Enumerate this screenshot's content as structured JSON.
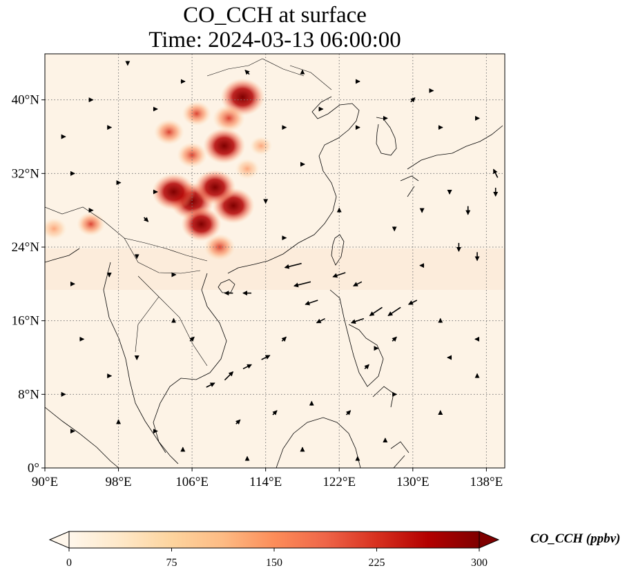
{
  "title": {
    "line1": "CO_CCH at surface",
    "line2": "Time: 2024-03-13 06:00:00"
  },
  "map": {
    "lon_range": [
      90,
      140
    ],
    "lat_range": [
      0,
      45
    ],
    "lon_ticks": [
      "90°E",
      "98°E",
      "106°E",
      "114°E",
      "122°E",
      "130°E",
      "138°E"
    ],
    "lon_tick_values": [
      90,
      98,
      106,
      114,
      122,
      130,
      138
    ],
    "lat_ticks": [
      "0°",
      "8°N",
      "16°N",
      "24°N",
      "32°N",
      "40°N"
    ],
    "lat_tick_values": [
      0,
      8,
      16,
      24,
      32,
      40
    ],
    "gridlines": true,
    "field": "CO_CCH",
    "hotspots": [
      {
        "lon": 106.0,
        "lat": 29.0,
        "value": 300
      },
      {
        "lon": 104.0,
        "lat": 30.0,
        "value": 290
      },
      {
        "lon": 110.5,
        "lat": 28.5,
        "value": 280
      },
      {
        "lon": 108.5,
        "lat": 30.5,
        "value": 270
      },
      {
        "lon": 107.0,
        "lat": 26.5,
        "value": 260
      },
      {
        "lon": 109.5,
        "lat": 35.0,
        "value": 280
      },
      {
        "lon": 111.5,
        "lat": 40.3,
        "value": 300
      },
      {
        "lon": 110.0,
        "lat": 38.0,
        "value": 180
      },
      {
        "lon": 106.5,
        "lat": 38.5,
        "value": 150
      },
      {
        "lon": 103.5,
        "lat": 36.5,
        "value": 160
      },
      {
        "lon": 106.0,
        "lat": 34.0,
        "value": 160
      },
      {
        "lon": 95.0,
        "lat": 26.5,
        "value": 140
      },
      {
        "lon": 91.0,
        "lat": 26.0,
        "value": 120
      },
      {
        "lon": 109.0,
        "lat": 24.0,
        "value": 170
      },
      {
        "lon": 113.5,
        "lat": 35.0,
        "value": 90
      },
      {
        "lon": 112.0,
        "lat": 32.5,
        "value": 110
      }
    ],
    "wind_vectors": [
      {
        "lon": 117,
        "lat": 22,
        "u": -4,
        "v": -1
      },
      {
        "lon": 118,
        "lat": 20,
        "u": -4,
        "v": -1
      },
      {
        "lon": 119,
        "lat": 18,
        "u": -3,
        "v": -1
      },
      {
        "lon": 122,
        "lat": 21,
        "u": -3,
        "v": -1
      },
      {
        "lon": 124,
        "lat": 20,
        "u": -2,
        "v": -1
      },
      {
        "lon": 126,
        "lat": 17,
        "u": -3,
        "v": -2
      },
      {
        "lon": 128,
        "lat": 17,
        "u": -3,
        "v": -2
      },
      {
        "lon": 124,
        "lat": 16,
        "u": -3,
        "v": -1
      },
      {
        "lon": 130,
        "lat": 18,
        "u": -2,
        "v": -1
      },
      {
        "lon": 135,
        "lat": 24,
        "u": 0,
        "v": -2
      },
      {
        "lon": 137,
        "lat": 23,
        "u": 0,
        "v": -2
      },
      {
        "lon": 136,
        "lat": 28,
        "u": 0,
        "v": -2
      },
      {
        "lon": 139,
        "lat": 30,
        "u": 0,
        "v": -2
      },
      {
        "lon": 139,
        "lat": 32,
        "u": -1,
        "v": 2
      },
      {
        "lon": 133,
        "lat": 16,
        "u": 0,
        "v": 1
      },
      {
        "lon": 110,
        "lat": 10,
        "u": 2,
        "v": 2
      },
      {
        "lon": 108,
        "lat": 9,
        "u": 2,
        "v": 1
      },
      {
        "lon": 112,
        "lat": 11,
        "u": 2,
        "v": 1
      },
      {
        "lon": 114,
        "lat": 12,
        "u": 2,
        "v": 1
      },
      {
        "lon": 116,
        "lat": 14,
        "u": 1,
        "v": 1
      },
      {
        "lon": 125,
        "lat": 11,
        "u": 1,
        "v": 1
      },
      {
        "lon": 126,
        "lat": 13,
        "u": 1,
        "v": 0
      },
      {
        "lon": 128,
        "lat": 14,
        "u": 1,
        "v": 1
      },
      {
        "lon": 110,
        "lat": 19,
        "u": -2,
        "v": 0
      },
      {
        "lon": 112,
        "lat": 19,
        "u": -2,
        "v": 0
      },
      {
        "lon": 120,
        "lat": 16,
        "u": -2,
        "v": -1
      },
      {
        "lon": 130,
        "lat": 40,
        "u": 1,
        "v": 1
      },
      {
        "lon": 132,
        "lat": 41,
        "u": 1,
        "v": 0
      },
      {
        "lon": 127,
        "lat": 38,
        "u": 1,
        "v": 0
      },
      {
        "lon": 124,
        "lat": 37,
        "u": 1,
        "v": 0
      },
      {
        "lon": 133,
        "lat": 37,
        "u": 1,
        "v": 0
      },
      {
        "lon": 137,
        "lat": 38,
        "u": 1,
        "v": 0
      },
      {
        "lon": 98,
        "lat": 31,
        "u": 1,
        "v": 0
      },
      {
        "lon": 93,
        "lat": 32,
        "u": 1,
        "v": 0
      },
      {
        "lon": 95,
        "lat": 28,
        "u": 1,
        "v": 0
      },
      {
        "lon": 95,
        "lat": 40,
        "u": 1,
        "v": 0
      },
      {
        "lon": 97,
        "lat": 37,
        "u": 1,
        "v": 0
      },
      {
        "lon": 101,
        "lat": 27,
        "u": 1,
        "v": -1
      },
      {
        "lon": 102,
        "lat": 30,
        "u": 1,
        "v": 0
      },
      {
        "lon": 112,
        "lat": 43,
        "u": -1,
        "v": 1
      },
      {
        "lon": 118,
        "lat": 43,
        "u": 0,
        "v": 1
      },
      {
        "lon": 124,
        "lat": 42,
        "u": 1,
        "v": 0
      },
      {
        "lon": 105,
        "lat": 42,
        "u": 1,
        "v": 0
      },
      {
        "lon": 99,
        "lat": 44,
        "u": 0,
        "v": -1
      },
      {
        "lon": 104,
        "lat": 16,
        "u": 0,
        "v": 1
      },
      {
        "lon": 106,
        "lat": 14,
        "u": 1,
        "v": 1
      },
      {
        "lon": 100,
        "lat": 12,
        "u": 0,
        "v": -1
      },
      {
        "lon": 97,
        "lat": 10,
        "u": 1,
        "v": 0
      },
      {
        "lon": 94,
        "lat": 14,
        "u": 1,
        "v": 0
      },
      {
        "lon": 92,
        "lat": 8,
        "u": 1,
        "v": 0
      },
      {
        "lon": 93,
        "lat": 4,
        "u": 1,
        "v": 0
      },
      {
        "lon": 98,
        "lat": 5,
        "u": 0,
        "v": 1
      },
      {
        "lon": 102,
        "lat": 4,
        "u": 1,
        "v": 0
      },
      {
        "lon": 105,
        "lat": 2,
        "u": 0,
        "v": 1
      },
      {
        "lon": 111,
        "lat": 5,
        "u": 1,
        "v": 1
      },
      {
        "lon": 115,
        "lat": 6,
        "u": 1,
        "v": 1
      },
      {
        "lon": 119,
        "lat": 7,
        "u": 0,
        "v": 1
      },
      {
        "lon": 123,
        "lat": 6,
        "u": 1,
        "v": 1
      },
      {
        "lon": 128,
        "lat": 8,
        "u": 1,
        "v": 0
      },
      {
        "lon": 133,
        "lat": 6,
        "u": 0,
        "v": 1
      },
      {
        "lon": 137,
        "lat": 10,
        "u": 0,
        "v": 1
      },
      {
        "lon": 134,
        "lat": 12,
        "u": -1,
        "v": 0
      },
      {
        "lon": 137,
        "lat": 14,
        "u": -1,
        "v": 0
      },
      {
        "lon": 131,
        "lat": 22,
        "u": -1,
        "v": 0
      },
      {
        "lon": 128,
        "lat": 26,
        "u": 0,
        "v": -1
      },
      {
        "lon": 131,
        "lat": 28,
        "u": 0,
        "v": -1
      },
      {
        "lon": 134,
        "lat": 30,
        "u": 0,
        "v": -1
      },
      {
        "lon": 122,
        "lat": 28,
        "u": 0,
        "v": 1
      },
      {
        "lon": 118,
        "lat": 33,
        "u": 1,
        "v": 0
      },
      {
        "lon": 116,
        "lat": 25,
        "u": 1,
        "v": 0
      },
      {
        "lon": 97,
        "lat": 21,
        "u": 0,
        "v": -1
      },
      {
        "lon": 100,
        "lat": 23,
        "u": 0,
        "v": -1
      },
      {
        "lon": 93,
        "lat": 20,
        "u": 1,
        "v": 0
      },
      {
        "lon": 104,
        "lat": 21,
        "u": 1,
        "v": 0
      },
      {
        "lon": 114,
        "lat": 29,
        "u": 0,
        "v": -1
      },
      {
        "lon": 116,
        "lat": 37,
        "u": 1,
        "v": 0
      },
      {
        "lon": 120,
        "lat": 39,
        "u": 1,
        "v": 0
      },
      {
        "lon": 92,
        "lat": 36,
        "u": 1,
        "v": 0
      },
      {
        "lon": 102,
        "lat": 39,
        "u": 1,
        "v": 0
      },
      {
        "lon": 118,
        "lat": 2,
        "u": 0,
        "v": 1
      },
      {
        "lon": 127,
        "lat": 3,
        "u": 0,
        "v": 1
      },
      {
        "lon": 124,
        "lat": 1,
        "u": 0,
        "v": 1
      },
      {
        "lon": 112,
        "lat": 1,
        "u": 0,
        "v": 1
      }
    ]
  },
  "colorbar": {
    "label": "CO_CCH (ppbv)",
    "ticks": [
      "0",
      "75",
      "150",
      "225",
      "300"
    ],
    "tick_values": [
      0,
      75,
      150,
      225,
      300
    ],
    "range": [
      0,
      300
    ],
    "colormap": "OrRd",
    "extend": "both",
    "colors": [
      "#fff7ec",
      "#fee8c8",
      "#fdd49e",
      "#fdbb84",
      "#fc8d59",
      "#ef6548",
      "#d7301f",
      "#b30000",
      "#7f0000"
    ]
  }
}
